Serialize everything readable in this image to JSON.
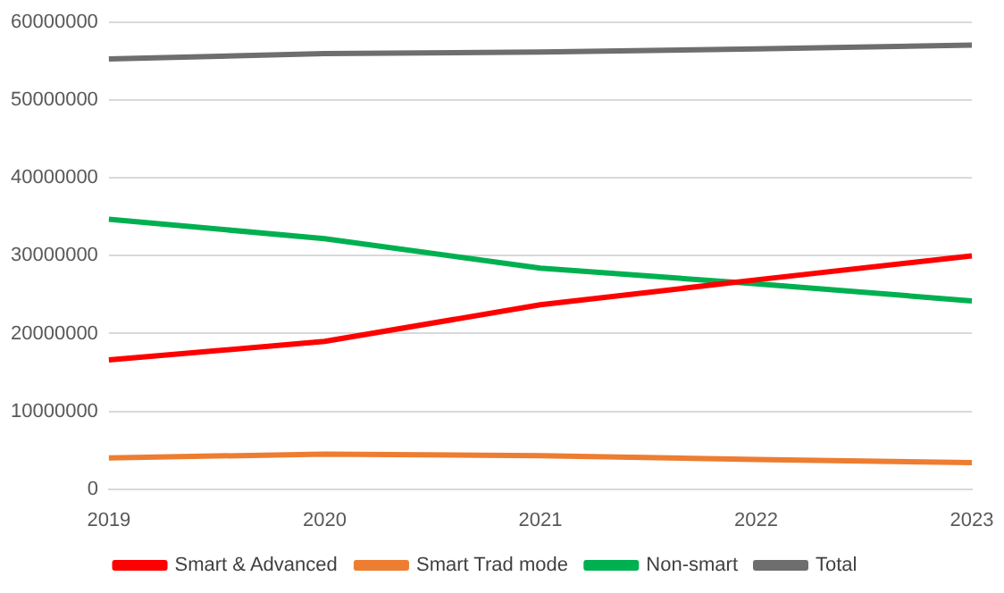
{
  "chart_data": {
    "type": "line",
    "categories": [
      "2019",
      "2020",
      "2021",
      "2022",
      "2023"
    ],
    "series": [
      {
        "name": "Smart & Advanced",
        "color": "#ff0000",
        "values": [
          16600000,
          19000000,
          23700000,
          26900000,
          30000000
        ]
      },
      {
        "name": "Smart Trad mode",
        "color": "#ed7d31",
        "values": [
          4000000,
          4500000,
          4300000,
          3800000,
          3400000
        ]
      },
      {
        "name": "Non-smart",
        "color": "#00b050",
        "values": [
          34700000,
          32200000,
          28400000,
          26400000,
          24200000
        ]
      },
      {
        "name": "Total",
        "color": "#6e6e6e",
        "values": [
          55300000,
          56000000,
          56200000,
          56600000,
          57100000
        ]
      }
    ],
    "ylim": [
      0,
      60000000
    ],
    "yticks": [
      0,
      10000000,
      20000000,
      30000000,
      40000000,
      50000000,
      60000000
    ],
    "grid": "y",
    "legend": "bottom",
    "marker": "none",
    "line_style": "solid"
  }
}
